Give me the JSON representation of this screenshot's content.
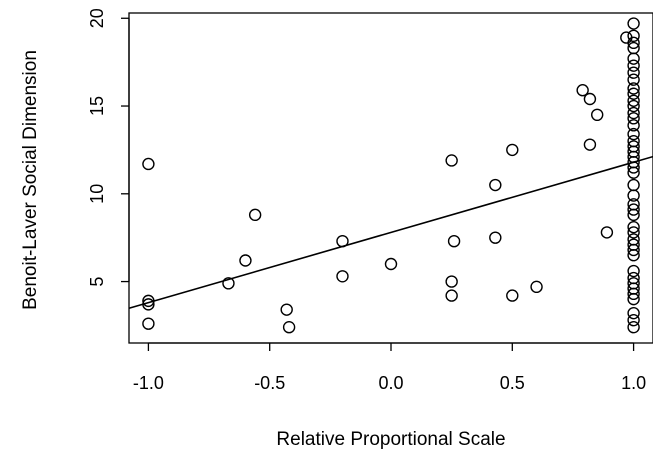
{
  "chart_data": {
    "type": "scatter",
    "title": "",
    "xlabel": "Relative Proportional Scale",
    "ylabel": "Benoit-Laver Social Dimension",
    "xlim": [
      -1.08,
      1.08
    ],
    "ylim": [
      1.5,
      20.3
    ],
    "xticks": [
      -1.0,
      -0.5,
      0.0,
      0.5,
      1.0
    ],
    "xtick_labels": [
      "-1.0",
      "-0.5",
      "0.0",
      "0.5",
      "1.0"
    ],
    "yticks": [
      5,
      10,
      15,
      20
    ],
    "ytick_labels": [
      "5",
      "10",
      "15",
      "20"
    ],
    "grid": false,
    "legend": "none",
    "marker": "open-circle",
    "points": [
      {
        "x": -1.0,
        "y": 11.7
      },
      {
        "x": -1.0,
        "y": 3.9
      },
      {
        "x": -1.0,
        "y": 3.7
      },
      {
        "x": -1.0,
        "y": 2.6
      },
      {
        "x": -0.67,
        "y": 4.9
      },
      {
        "x": -0.6,
        "y": 6.2
      },
      {
        "x": -0.56,
        "y": 8.8
      },
      {
        "x": -0.43,
        "y": 3.4
      },
      {
        "x": -0.42,
        "y": 2.4
      },
      {
        "x": -0.2,
        "y": 7.3
      },
      {
        "x": -0.2,
        "y": 5.3
      },
      {
        "x": 0.0,
        "y": 6.0
      },
      {
        "x": 0.25,
        "y": 11.9
      },
      {
        "x": 0.25,
        "y": 5.0
      },
      {
        "x": 0.25,
        "y": 4.2
      },
      {
        "x": 0.26,
        "y": 7.3
      },
      {
        "x": 0.43,
        "y": 10.5
      },
      {
        "x": 0.43,
        "y": 7.5
      },
      {
        "x": 0.5,
        "y": 12.5
      },
      {
        "x": 0.5,
        "y": 4.2
      },
      {
        "x": 0.6,
        "y": 4.7
      },
      {
        "x": 0.79,
        "y": 15.9
      },
      {
        "x": 0.82,
        "y": 15.4
      },
      {
        "x": 0.82,
        "y": 12.8
      },
      {
        "x": 0.85,
        "y": 14.5
      },
      {
        "x": 0.89,
        "y": 7.8
      },
      {
        "x": 0.97,
        "y": 18.9
      },
      {
        "x": 1.0,
        "y": 19.7
      },
      {
        "x": 1.0,
        "y": 19.0
      },
      {
        "x": 1.0,
        "y": 18.6
      },
      {
        "x": 1.0,
        "y": 18.3
      },
      {
        "x": 1.0,
        "y": 17.7
      },
      {
        "x": 1.0,
        "y": 17.3
      },
      {
        "x": 1.0,
        "y": 16.9
      },
      {
        "x": 1.0,
        "y": 16.5
      },
      {
        "x": 1.0,
        "y": 16.0
      },
      {
        "x": 1.0,
        "y": 15.7
      },
      {
        "x": 1.0,
        "y": 15.3
      },
      {
        "x": 1.0,
        "y": 15.0
      },
      {
        "x": 1.0,
        "y": 14.6
      },
      {
        "x": 1.0,
        "y": 14.3
      },
      {
        "x": 1.0,
        "y": 13.9
      },
      {
        "x": 1.0,
        "y": 13.4
      },
      {
        "x": 1.0,
        "y": 13.0
      },
      {
        "x": 1.0,
        "y": 12.7
      },
      {
        "x": 1.0,
        "y": 12.4
      },
      {
        "x": 1.0,
        "y": 12.1
      },
      {
        "x": 1.0,
        "y": 11.8
      },
      {
        "x": 1.0,
        "y": 11.5
      },
      {
        "x": 1.0,
        "y": 11.2
      },
      {
        "x": 1.0,
        "y": 10.5
      },
      {
        "x": 1.0,
        "y": 9.9
      },
      {
        "x": 1.0,
        "y": 9.4
      },
      {
        "x": 1.0,
        "y": 9.1
      },
      {
        "x": 1.0,
        "y": 8.8
      },
      {
        "x": 1.0,
        "y": 8.1
      },
      {
        "x": 1.0,
        "y": 7.8
      },
      {
        "x": 1.0,
        "y": 7.4
      },
      {
        "x": 1.0,
        "y": 7.1
      },
      {
        "x": 1.0,
        "y": 6.8
      },
      {
        "x": 1.0,
        "y": 6.5
      },
      {
        "x": 1.0,
        "y": 5.6
      },
      {
        "x": 1.0,
        "y": 5.2
      },
      {
        "x": 1.0,
        "y": 4.9
      },
      {
        "x": 1.0,
        "y": 4.6
      },
      {
        "x": 1.0,
        "y": 4.3
      },
      {
        "x": 1.0,
        "y": 4.0
      },
      {
        "x": 1.0,
        "y": 3.2
      },
      {
        "x": 1.0,
        "y": 2.8
      },
      {
        "x": 1.0,
        "y": 2.4
      }
    ],
    "fit_line": {
      "type": "linear",
      "intercept": 7.8,
      "slope": 4.0
    }
  }
}
